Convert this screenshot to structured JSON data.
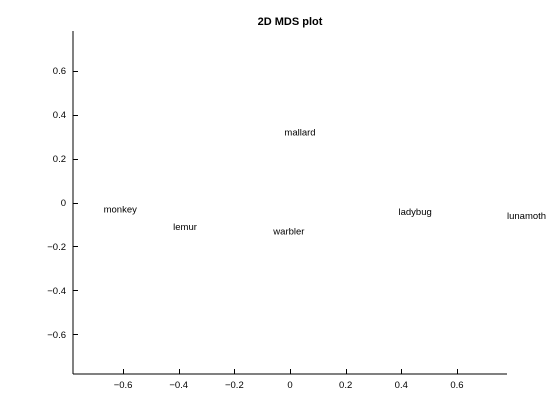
{
  "chart_data": {
    "type": "scatter",
    "title": "2D MDS plot",
    "xlabel": "",
    "ylabel": "",
    "xlim": [
      -0.78,
      0.78
    ],
    "ylim": [
      -0.78,
      0.78
    ],
    "xticks": [
      -0.6,
      -0.4,
      -0.2,
      0,
      0.2,
      0.4,
      0.6
    ],
    "xtick_labels": [
      "−0.6",
      "−0.4",
      "−0.2",
      "0",
      "0.2",
      "0.4",
      "0.6"
    ],
    "yticks": [
      -0.6,
      -0.4,
      -0.2,
      0,
      0.2,
      0.4,
      0.6
    ],
    "ytick_labels": [
      "−0.6",
      "−0.4",
      "−0.2",
      "0",
      "0.2",
      "0.4",
      "0.6"
    ],
    "grid": false,
    "points": [
      {
        "label": "monkey",
        "x": -0.67,
        "y": -0.03
      },
      {
        "label": "lemur",
        "x": -0.42,
        "y": -0.11
      },
      {
        "label": "mallard",
        "x": -0.02,
        "y": 0.32
      },
      {
        "label": "warbler",
        "x": -0.06,
        "y": -0.13
      },
      {
        "label": "ladybug",
        "x": 0.39,
        "y": -0.04
      },
      {
        "label": "lunamoth",
        "x": 0.78,
        "y": -0.06
      }
    ]
  }
}
